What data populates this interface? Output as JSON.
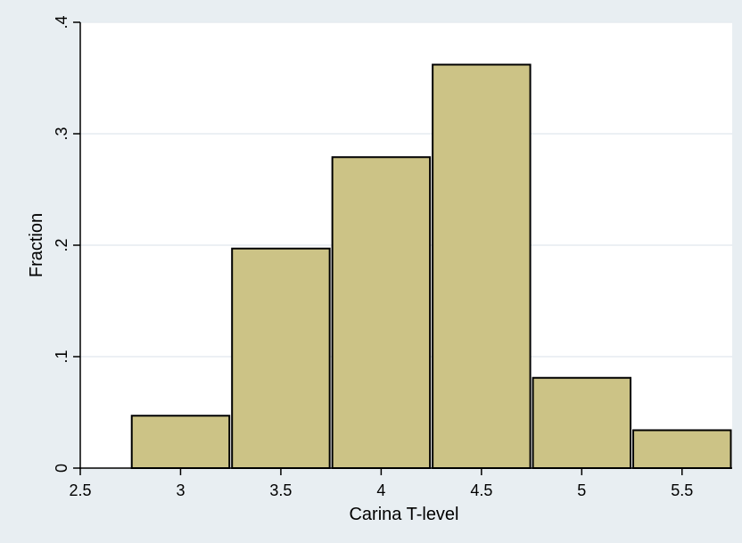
{
  "chart_data": {
    "type": "bar",
    "subtype": "histogram",
    "xlabel": "Carina T-level",
    "ylabel": "Fraction",
    "xlim": [
      2.5,
      5.75
    ],
    "ylim": [
      0,
      0.4
    ],
    "x_ticks": [
      {
        "value": 2.5,
        "label": "2.5"
      },
      {
        "value": 3,
        "label": "3"
      },
      {
        "value": 3.5,
        "label": "3.5"
      },
      {
        "value": 4,
        "label": "4"
      },
      {
        "value": 4.5,
        "label": "4.5"
      },
      {
        "value": 5,
        "label": "5"
      },
      {
        "value": 5.5,
        "label": "5.5"
      }
    ],
    "y_ticks": [
      {
        "value": 0,
        "label": "0"
      },
      {
        "value": 0.1,
        "label": ".1"
      },
      {
        "value": 0.2,
        "label": ".2"
      },
      {
        "value": 0.3,
        "label": ".3"
      },
      {
        "value": 0.4,
        "label": ".4"
      }
    ],
    "bars": [
      {
        "x0": 2.75,
        "x1": 3.25,
        "value": 0.047
      },
      {
        "x0": 3.25,
        "x1": 3.75,
        "value": 0.197
      },
      {
        "x0": 3.75,
        "x1": 4.25,
        "value": 0.279
      },
      {
        "x0": 4.25,
        "x1": 4.75,
        "value": 0.362
      },
      {
        "x0": 4.75,
        "x1": 5.25,
        "value": 0.081
      },
      {
        "x0": 5.25,
        "x1": 5.75,
        "value": 0.034
      }
    ],
    "grid": {
      "horizontal": true,
      "vertical": false
    },
    "colors": {
      "background": "#e8eef2",
      "plot_background": "#ffffff",
      "bar_fill": "#ccc386",
      "bar_stroke": "#000000",
      "grid": "#e6ecf0",
      "axis": "#000000"
    }
  }
}
